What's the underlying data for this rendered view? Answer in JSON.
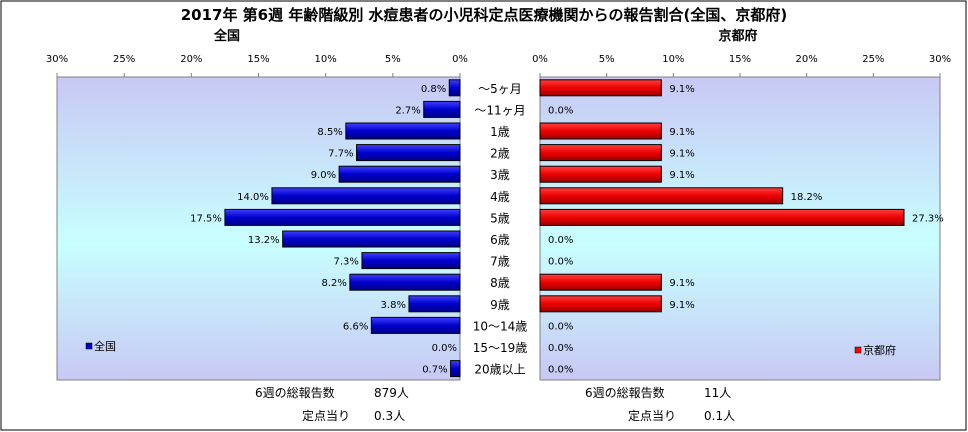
{
  "chart_data": {
    "type": "bar",
    "title": "2017年 第6週 年齢階級別 水痘患者の小児科定点医療機関からの報告割合(全国、京都府)",
    "categories": [
      "～5ヶ月",
      "～11ヶ月",
      "1歳",
      "2歳",
      "3歳",
      "4歳",
      "5歳",
      "6歳",
      "7歳",
      "8歳",
      "9歳",
      "10～14歳",
      "15～19歳",
      "20歳以上"
    ],
    "xlim": [
      0,
      30
    ],
    "ticks": [
      30,
      25,
      20,
      15,
      10,
      5,
      0
    ],
    "tick_labels": [
      "30%",
      "25%",
      "20%",
      "15%",
      "10%",
      "5%",
      "0%"
    ],
    "grid": false,
    "panels": [
      {
        "name": "全国",
        "side": "left",
        "color": "#0000cc",
        "values": [
          0.8,
          2.7,
          8.5,
          7.7,
          9.0,
          14.0,
          17.5,
          13.2,
          7.3,
          8.2,
          3.8,
          6.6,
          0.0,
          0.7
        ],
        "value_labels": [
          "0.8%",
          "2.7%",
          "8.5%",
          "7.7%",
          "9.0%",
          "14.0%",
          "17.5%",
          "13.2%",
          "7.3%",
          "8.2%",
          "3.8%",
          "6.6%",
          "0.0%",
          "0.7%"
        ],
        "legend_label": "全国",
        "legend_placement": "bottom-left",
        "total_label": "6週の総報告数",
        "total_value": "879人",
        "per_label": "定点当り",
        "per_value": "0.3人"
      },
      {
        "name": "京都府",
        "side": "right",
        "color": "#ff0000",
        "values": [
          9.1,
          0.0,
          9.1,
          9.1,
          9.1,
          18.2,
          27.3,
          0.0,
          0.0,
          9.1,
          9.1,
          0.0,
          0.0,
          0.0
        ],
        "value_labels": [
          "9.1%",
          "0.0%",
          "9.1%",
          "9.1%",
          "9.1%",
          "18.2%",
          "27.3%",
          "0.0%",
          "0.0%",
          "9.1%",
          "9.1%",
          "0.0%",
          "0.0%",
          "0.0%"
        ],
        "legend_label": "京都府",
        "legend_placement": "bottom-right",
        "total_label": "6週の総報告数",
        "total_value": "11人",
        "per_label": "定点当り",
        "per_value": "0.1人"
      }
    ]
  }
}
